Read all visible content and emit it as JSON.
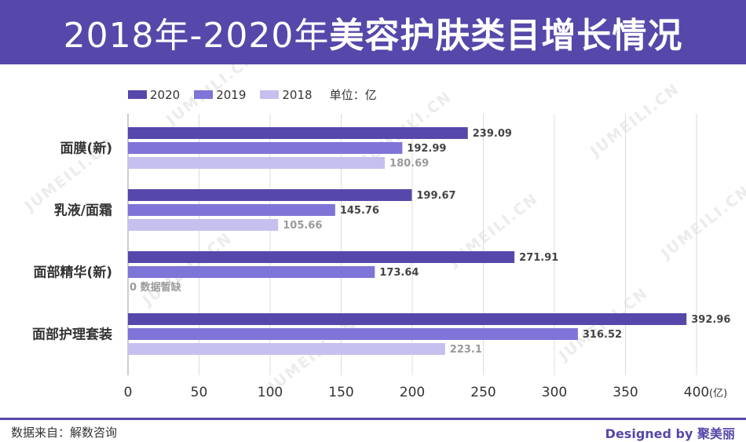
{
  "header": {
    "title_normal": "2018年-2020年",
    "title_bold": "美容护肤类目增长情况"
  },
  "watermark": "JUMEILI.CN",
  "legend": {
    "unit": "单位：亿"
  },
  "chart_data": {
    "type": "bar",
    "orientation": "horizontal",
    "categories": [
      "面膜(新)",
      "乳液/面霜",
      "面部精华(新)",
      "面部护理套装"
    ],
    "series": [
      {
        "name": "2020",
        "color": "#5548aa",
        "values": [
          239.09,
          199.67,
          271.91,
          392.96
        ],
        "labels": [
          "239.09",
          "199.67",
          "271.91",
          "392.96"
        ]
      },
      {
        "name": "2019",
        "color": "#7f74d8",
        "values": [
          192.99,
          145.76,
          173.64,
          316.52
        ],
        "labels": [
          "192.99",
          "145.76",
          "173.64",
          "316.52"
        ]
      },
      {
        "name": "2018",
        "color": "#c5c0ee",
        "values": [
          180.69,
          105.66,
          0,
          223.1
        ],
        "labels": [
          "180.69",
          "105.66",
          "0 数据暂缺",
          "223.1"
        ]
      }
    ],
    "x_ticks": [
      "0",
      "50",
      "100",
      "150",
      "200",
      "250",
      "300",
      "350",
      "400"
    ],
    "x_unit": "(亿)",
    "xlim": [
      0,
      400
    ],
    "grid": true
  },
  "footer": {
    "source": "数据来自：解数咨询",
    "credit": "Designed by 聚美丽"
  }
}
